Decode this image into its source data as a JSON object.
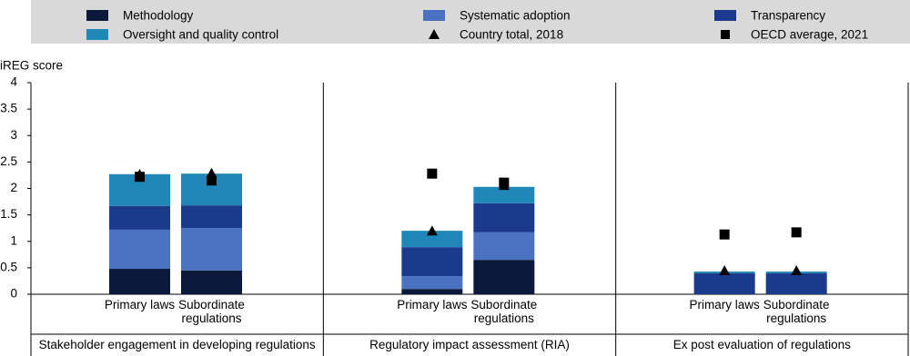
{
  "chart_data": {
    "type": "stacked_bar",
    "y_label": "iREG score",
    "ylim": [
      0,
      4
    ],
    "yticks": [
      0,
      0.5,
      1,
      1.5,
      2,
      2.5,
      3,
      3.5,
      4
    ],
    "groups": [
      "Stakeholder engagement in developing regulations",
      "Regulatory impact assessment (RIA)",
      "Ex post evaluation of regulations"
    ],
    "categories": [
      "Primary laws",
      "Subordinate regulations",
      "Primary laws",
      "Subordinate regulations",
      "Primary laws",
      "Subordinate regulations"
    ],
    "series": [
      {
        "name": "Methodology",
        "color": "#0b1a3a",
        "values": [
          0.48,
          0.45,
          0.1,
          0.65,
          0,
          0
        ]
      },
      {
        "name": "Systematic adoption",
        "color": "#4a72c0",
        "values": [
          0.74,
          0.8,
          0.24,
          0.52,
          0,
          0
        ]
      },
      {
        "name": "Transparency",
        "color": "#1c3a8c",
        "values": [
          0.45,
          0.43,
          0.55,
          0.55,
          0.4,
          0.4
        ]
      },
      {
        "name": "Oversight and quality control",
        "color": "#1f88b8",
        "values": [
          0.6,
          0.6,
          0.31,
          0.31,
          0.03,
          0.03
        ]
      }
    ],
    "markers": [
      {
        "name": "Country total, 2018",
        "marker": "triangle",
        "color": "#000000",
        "values": [
          2.25,
          2.27,
          1.18,
          2.04,
          0.43,
          0.43
        ]
      },
      {
        "name": "OECD average, 2021",
        "marker": "square",
        "color": "#000000",
        "values": [
          2.22,
          2.15,
          2.28,
          2.11,
          1.13,
          1.17
        ]
      }
    ]
  }
}
